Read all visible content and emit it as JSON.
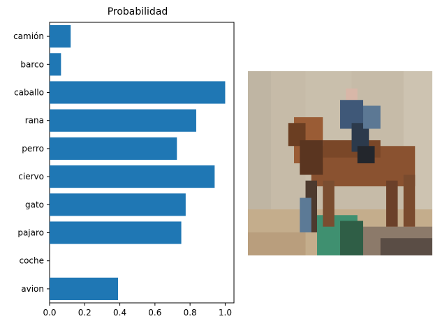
{
  "chart_data": {
    "type": "bar",
    "orientation": "horizontal",
    "title": "Probabilidad",
    "categories": [
      "avion",
      "coche",
      "pajaro",
      "gato",
      "ciervo",
      "perro",
      "rana",
      "caballo",
      "barco",
      "camión"
    ],
    "values": [
      0.39,
      0.0,
      0.75,
      0.775,
      0.94,
      0.725,
      0.835,
      1.0,
      0.065,
      0.12
    ],
    "xlim": [
      0,
      1.05
    ],
    "xticks": [
      "0.0",
      "0.2",
      "0.4",
      "0.6",
      "0.8",
      "1.0"
    ],
    "xtick_values": [
      0,
      0.2,
      0.4,
      0.6,
      0.8,
      1.0
    ],
    "xlabel": "",
    "ylabel": "",
    "grid": false,
    "bar_color": "#1f77b4"
  },
  "image": {
    "description_icon": "horse-with-rider-pixel-image"
  }
}
